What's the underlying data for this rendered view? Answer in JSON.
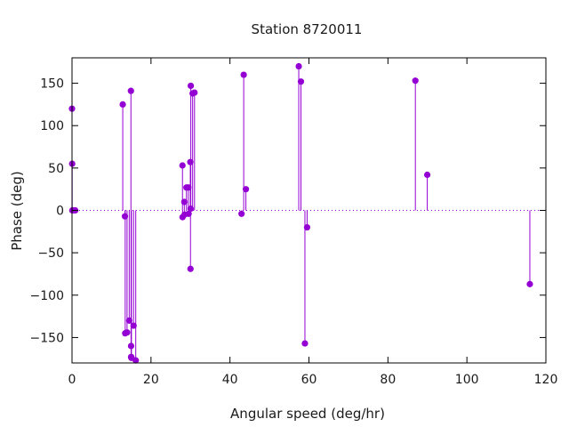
{
  "chart_data": {
    "type": "scatter",
    "style": "impulses-with-points",
    "title": "Station 8720011",
    "xlabel": "Angular speed (deg/hr)",
    "ylabel": "Phase (deg)",
    "xlim": [
      0,
      120
    ],
    "ylim": [
      -180,
      180
    ],
    "xticks": [
      0,
      20,
      40,
      60,
      80,
      100,
      120
    ],
    "yticks": [
      -150,
      -100,
      -50,
      0,
      50,
      100,
      150
    ],
    "zero_line": "dotted",
    "grid": false,
    "legend": "none",
    "color": "#9400d3",
    "series": [
      {
        "x": [
          0.0,
          0.04,
          0.08,
          0.54,
          0.82,
          12.85,
          13.4,
          13.47,
          13.94,
          14.49,
          14.92,
          14.96,
          14.96,
          15.0,
          15.04,
          15.59,
          16.14,
          27.97,
          28.0,
          28.44,
          28.51,
          28.98,
          29.46,
          29.53,
          29.96,
          30.0,
          30.04,
          30.08,
          30.54,
          31.02,
          42.93,
          43.48,
          44.03,
          57.42,
          57.97,
          58.98,
          59.53,
          86.95,
          89.96,
          115.94
        ],
        "y": [
          120,
          55,
          0,
          0,
          0,
          125,
          -7,
          -145,
          -144,
          -130,
          141,
          -160,
          -173,
          -173,
          -174,
          -136,
          -177,
          53,
          -8,
          10,
          -5,
          27,
          27,
          -4,
          57,
          -69,
          2,
          147,
          138,
          139,
          -4,
          160,
          25,
          170,
          152,
          -157,
          -20,
          153,
          42,
          -87
        ]
      }
    ]
  }
}
